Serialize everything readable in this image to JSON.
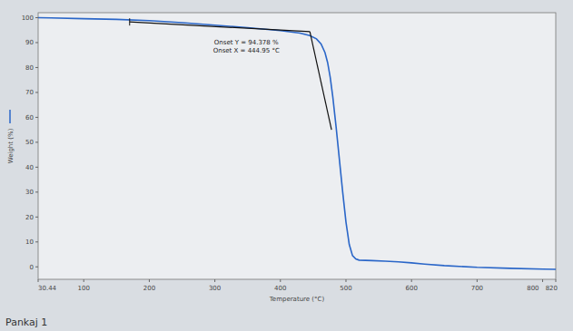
{
  "chart_data": {
    "type": "line",
    "x_label": "Temperature (°C)",
    "y_label": "Weight (%)",
    "caption": "Pankaj 1",
    "annotations": [
      "Onset Y = 94.378 %",
      "Onset X = 444.95 °C"
    ],
    "xlim": [
      30.44,
      820
    ],
    "ylim": [
      -5,
      102
    ],
    "xticks": [
      30.44,
      100,
      200,
      300,
      400,
      500,
      600,
      700,
      800,
      820
    ],
    "yticks": [
      0,
      10,
      20,
      30,
      40,
      50,
      60,
      70,
      80,
      90,
      100
    ],
    "grid": false,
    "series": [
      {
        "color": "#2a66c8",
        "type": "line",
        "x": [
          30.44,
          50,
          100,
          150,
          200,
          250,
          300,
          350,
          400,
          430,
          445,
          455,
          462,
          468,
          472,
          476,
          480,
          485,
          490,
          495,
          500,
          505,
          510,
          515,
          520,
          540,
          560,
          580,
          600,
          620,
          650,
          700,
          750,
          800,
          820
        ],
        "values": [
          100,
          99.9,
          99.6,
          99.3,
          98.8,
          98.0,
          97.0,
          96.0,
          94.8,
          93.8,
          92.8,
          91.5,
          89.5,
          86,
          82,
          76,
          68,
          56,
          43,
          30,
          18,
          9,
          4.5,
          3.2,
          2.7,
          2.5,
          2.3,
          2.0,
          1.6,
          1.1,
          0.5,
          -0.2,
          -0.6,
          -0.9,
          -1.0
        ]
      },
      {
        "color": "#111111",
        "type": "line",
        "x": [
          170,
          444.95
        ],
        "values": [
          98.3,
          94.378
        ]
      },
      {
        "color": "#111111",
        "type": "line",
        "x": [
          444.95,
          478
        ],
        "values": [
          94.378,
          55
        ]
      }
    ]
  }
}
